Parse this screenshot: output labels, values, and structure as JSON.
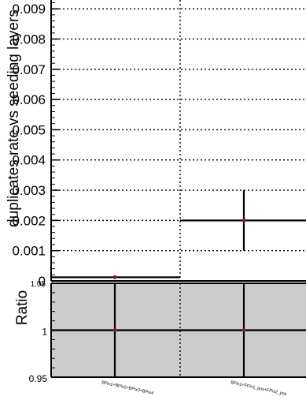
{
  "chart_data": [
    {
      "type": "scatter",
      "title": "",
      "ylabel": "duplicates rate vs seeding layers",
      "xlabel": "",
      "ylim": [
        0,
        0.0095
      ],
      "yticks": [
        "0",
        "0.001",
        "0.002",
        "0.003",
        "0.004",
        "0.005",
        "0.006",
        "0.007",
        "0.008",
        "0.009"
      ],
      "grid": true,
      "categories": [
        "BPix1+BPix2+BPix3+BPix4",
        "BPix1+FPix1_pos+FPix2_pos"
      ],
      "series": [
        {
          "values": [
            0.00012,
            0.002
          ],
          "y_err": [
            0,
            0.001
          ],
          "color": "#7a1f3a"
        }
      ]
    },
    {
      "type": "scatter",
      "title": "",
      "ylabel": "Ratio",
      "xlabel": "",
      "ylim": [
        0.95,
        1.05
      ],
      "yticks": [
        "0.95",
        "1"
      ],
      "top_tick_label": "1.05",
      "grid": true,
      "background": "#cccccc",
      "categories": [
        "BPix1+BPix2+BPix3+BPix4",
        "BPix1+FPix1_pos+FPix2_pos"
      ],
      "series": [
        {
          "values": [
            1,
            1
          ],
          "y_err": [
            0.05,
            0.05
          ],
          "color": "#7a1f3a"
        }
      ]
    }
  ]
}
